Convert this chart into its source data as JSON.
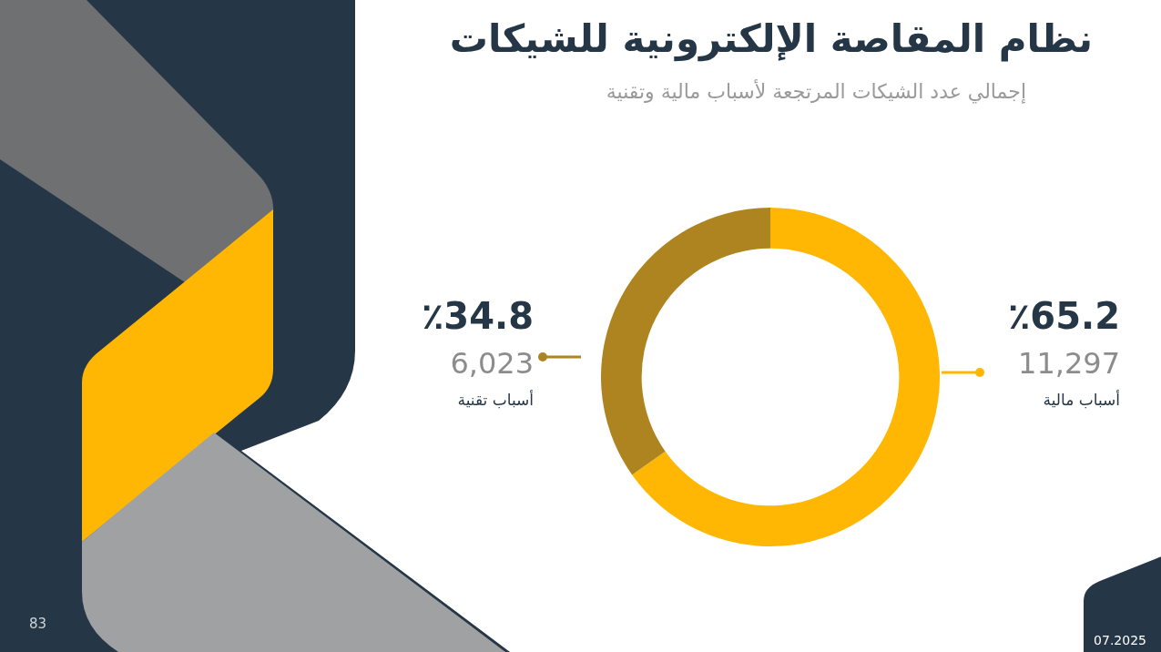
{
  "chart_data": {
    "type": "donut",
    "title": "نظام المقاصة الإلكترونية للشيكات",
    "subtitle": "إجمالي عدد الشيكات المرتجعة لأسباب مالية وتقنية",
    "categories": [
      "أسباب مالية",
      "أسباب تقنية"
    ],
    "values": [
      65.2,
      34.8
    ],
    "colors": [
      "#ffb703",
      "#ad8420"
    ],
    "value_labels": [
      "٪65.2",
      "٪34.8"
    ],
    "legend": false,
    "annotations": [
      {
        "text": "11,297",
        "x": "أسباب مالية"
      },
      {
        "text": "6,023",
        "x": "أسباب تقنية"
      },
      "83",
      "07.2025"
    ]
  }
}
